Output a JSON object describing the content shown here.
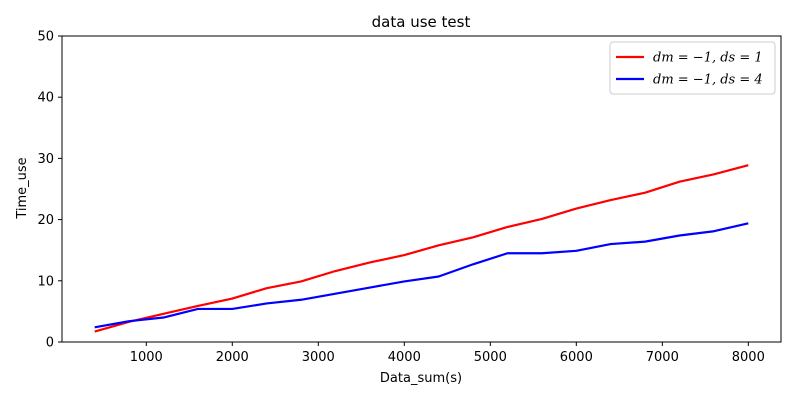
{
  "chart_data": {
    "type": "line",
    "title": "data use test",
    "xlabel": "Data_sum(s)",
    "ylabel": "Time_use",
    "xlim": [
      20,
      8380
    ],
    "ylim": [
      0,
      50
    ],
    "xticks": [
      1000,
      2000,
      3000,
      4000,
      5000,
      6000,
      7000,
      8000
    ],
    "yticks": [
      0,
      10,
      20,
      30,
      40,
      50
    ],
    "grid": false,
    "legend_position": "top-right",
    "x": [
      400,
      800,
      1200,
      1600,
      2000,
      2400,
      2800,
      3200,
      3600,
      4000,
      4400,
      4800,
      5200,
      5600,
      6000,
      6400,
      6800,
      7200,
      7600,
      8000
    ],
    "series": [
      {
        "name": "dm = −1, ds = 1",
        "color": "#ff0000",
        "values": [
          1.7,
          3.3,
          4.6,
          5.9,
          7.1,
          8.8,
          9.9,
          11.6,
          13.0,
          14.2,
          15.8,
          17.1,
          18.8,
          20.1,
          21.8,
          23.2,
          24.4,
          26.2,
          27.4,
          28.9
        ]
      },
      {
        "name": "dm = −1, ds = 4",
        "color": "#0000ff",
        "values": [
          2.4,
          3.4,
          4.0,
          5.4,
          5.4,
          6.3,
          6.9,
          7.9,
          8.9,
          9.9,
          10.7,
          12.7,
          14.5,
          14.5,
          14.9,
          16.0,
          16.4,
          17.4,
          18.1,
          19.4
        ]
      }
    ]
  }
}
